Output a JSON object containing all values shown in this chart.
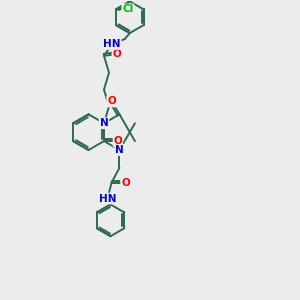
{
  "bg_color": "#ececec",
  "bond_color": "#2d6b4e",
  "atom_colors": {
    "N": "#0000dd",
    "O": "#ff0000",
    "Cl": "#00bb00",
    "C": "#2d6b4e"
  },
  "bond_lw": 1.4,
  "ring_r": 18,
  "font_size": 7.5
}
